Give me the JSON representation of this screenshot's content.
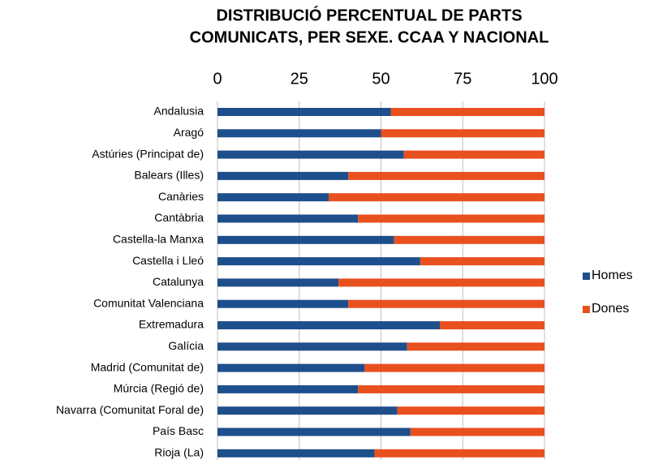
{
  "chart_data": {
    "type": "stacked-bar-horizontal",
    "title": [
      "DISTRIBUCIÓ PERCENTUAL DE PARTS",
      "COMUNICATS, PER SEXE. CCAA Y NACIONAL"
    ],
    "categories": [
      "Andalusia",
      "Aragó",
      "Astúries (Principat de)",
      "Balears (Illes)",
      "Canàries",
      "Cantàbria",
      "Castella-la Manxa",
      "Castella i Lleó",
      "Catalunya",
      "Comunitat Valenciana",
      "Extremadura",
      "Galícia",
      "Madrid (Comunitat de)",
      "Múrcia (Regió de)",
      "Navarra (Comunitat Foral de)",
      "País Basc",
      "Rioja (La)"
    ],
    "series": [
      {
        "name": "Homes",
        "color": "#1f4e8c",
        "values": [
          53,
          50,
          57,
          40,
          34,
          43,
          54,
          62,
          37,
          40,
          68,
          58,
          45,
          43,
          55,
          59,
          48
        ]
      },
      {
        "name": "Dones",
        "color": "#e8501e",
        "values": [
          47,
          50,
          43,
          60,
          66,
          57,
          46,
          38,
          63,
          60,
          32,
          42,
          55,
          57,
          45,
          41,
          52
        ]
      }
    ],
    "xlim": [
      0,
      100
    ],
    "xticks": [
      0,
      25,
      50,
      75,
      100
    ],
    "grid": true,
    "legend": "right"
  }
}
